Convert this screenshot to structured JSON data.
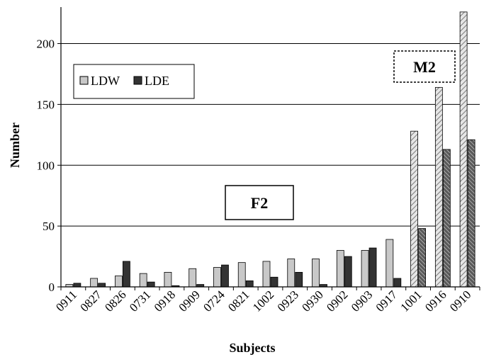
{
  "chart_data": {
    "type": "bar",
    "title": "",
    "xlabel": "Subjects",
    "ylabel": "Number",
    "ylim": [
      0,
      230
    ],
    "yticks": [
      0,
      50,
      100,
      150,
      200
    ],
    "grid": "horizontal",
    "legend_position": "upper-left",
    "categories": [
      "0911",
      "0827",
      "0826",
      "0731",
      "0918",
      "0909",
      "0724",
      "0821",
      "1002",
      "0923",
      "0930",
      "0902",
      "0903",
      "0917",
      "1001",
      "0916",
      "0910"
    ],
    "series": [
      {
        "name": "LDW",
        "color": "#c8c8c8",
        "values": [
          2,
          7,
          9,
          11,
          12,
          15,
          16,
          20,
          21,
          23,
          23,
          30,
          30,
          39,
          128,
          164,
          226
        ]
      },
      {
        "name": "LDE",
        "color": "#333333",
        "values": [
          3,
          3,
          21,
          4,
          1,
          2,
          18,
          5,
          8,
          12,
          2,
          25,
          32,
          7,
          48,
          113,
          121
        ]
      }
    ],
    "hatched_categories": [
      "1001",
      "0916",
      "0910"
    ],
    "annotations": [
      "F2",
      "M2"
    ]
  }
}
